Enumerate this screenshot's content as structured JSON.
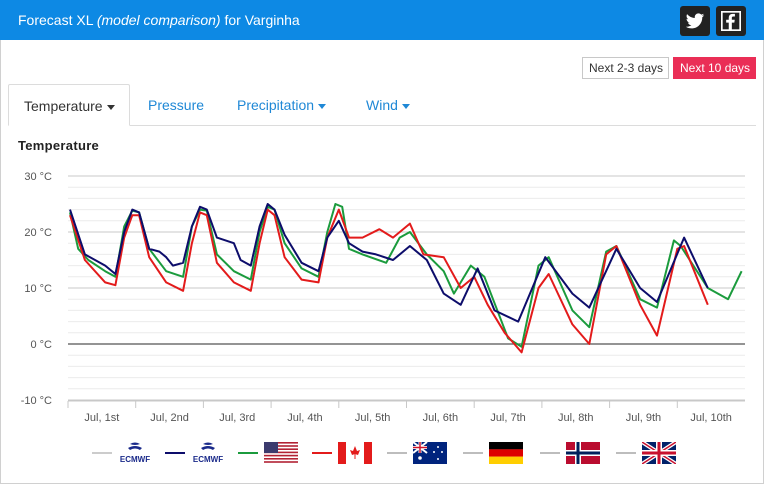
{
  "header": {
    "title_prefix": "Forecast XL",
    "title_em": "(model comparison)",
    "title_suffix": "for Varginha",
    "icons": [
      "twitter-icon",
      "facebook-icon"
    ]
  },
  "range_buttons": {
    "short": "Next 2-3 days",
    "long": "Next 10 days",
    "active": "long"
  },
  "tabs": [
    {
      "label": "Temperature",
      "dropdown": true,
      "active": true
    },
    {
      "label": "Pressure",
      "dropdown": false,
      "active": false
    },
    {
      "label": "Precipitation",
      "dropdown": true,
      "active": false
    },
    {
      "label": "Wind",
      "dropdown": true,
      "active": false
    }
  ],
  "chart_title": "Temperature",
  "colors": {
    "ecmwf_gray": "#cccccc",
    "ecmwf_navy": "#0d0d6b",
    "usa": "#1b9b3d",
    "canada": "#e31b1b",
    "australia": "#bdbdbd",
    "germany": "#bdbdbd",
    "norway": "#bdbdbd",
    "uk": "#bdbdbd"
  },
  "legend": [
    {
      "icon": "ecmwf-logo-icon",
      "text": "ECMWF",
      "color": "#cccccc"
    },
    {
      "icon": "ecmwf-logo-icon",
      "text": "ECMWF",
      "color": "#0d0d6b"
    },
    {
      "icon": "usa-flag-icon",
      "text": "",
      "color": "#1b9b3d"
    },
    {
      "icon": "canada-flag-icon",
      "text": "",
      "color": "#e31b1b"
    },
    {
      "icon": "australia-flag-icon",
      "text": "",
      "color": "#bdbdbd"
    },
    {
      "icon": "germany-flag-icon",
      "text": "",
      "color": "#bdbdbd"
    },
    {
      "icon": "norway-flag-icon",
      "text": "",
      "color": "#bdbdbd"
    },
    {
      "icon": "uk-flag-icon",
      "text": "",
      "color": "#bdbdbd"
    }
  ],
  "chart_data": {
    "type": "line",
    "title": "Temperature",
    "y_unit": "°C",
    "ylim": [
      -10,
      30
    ],
    "xlim": [
      0.5,
      10.5
    ],
    "y_ticks": [
      {
        "v": 30,
        "label": "30 °C"
      },
      {
        "v": 20,
        "label": "20 °C"
      },
      {
        "v": 10,
        "label": "10 °C"
      },
      {
        "v": 0,
        "label": "0 °C"
      },
      {
        "v": -10,
        "label": "-10 °C"
      }
    ],
    "x_ticks": [
      {
        "v": 1,
        "label": "Jul, 1st"
      },
      {
        "v": 2,
        "label": "Jul, 2nd"
      },
      {
        "v": 3,
        "label": "Jul, 3rd"
      },
      {
        "v": 4,
        "label": "Jul, 4th"
      },
      {
        "v": 5,
        "label": "Jul, 5th"
      },
      {
        "v": 6,
        "label": "Jul, 6th"
      },
      {
        "v": 7,
        "label": "Jul, 7th"
      },
      {
        "v": 8,
        "label": "Jul, 8th"
      },
      {
        "v": 9,
        "label": "Jul, 9th"
      },
      {
        "v": 10,
        "label": "Jul, 10th"
      }
    ],
    "grid": true,
    "series": [
      {
        "color": "#1b9b3d",
        "points": [
          [
            0.53,
            23.5
          ],
          [
            0.65,
            17
          ],
          [
            0.8,
            15
          ],
          [
            1.05,
            13
          ],
          [
            1.2,
            12
          ],
          [
            1.33,
            21
          ],
          [
            1.45,
            23.8
          ],
          [
            1.55,
            23.5
          ],
          [
            1.7,
            17
          ],
          [
            1.95,
            13
          ],
          [
            2.2,
            12
          ],
          [
            2.33,
            21
          ],
          [
            2.45,
            24
          ],
          [
            2.55,
            23.8
          ],
          [
            2.7,
            16
          ],
          [
            2.95,
            13
          ],
          [
            3.2,
            11.5
          ],
          [
            3.33,
            20
          ],
          [
            3.45,
            24.5
          ],
          [
            3.55,
            24
          ],
          [
            3.7,
            18
          ],
          [
            3.95,
            13.5
          ],
          [
            4.2,
            12
          ],
          [
            4.33,
            20
          ],
          [
            4.45,
            25
          ],
          [
            4.55,
            24.5
          ],
          [
            4.65,
            17
          ],
          [
            4.85,
            16
          ],
          [
            5.2,
            14.5
          ],
          [
            5.4,
            19
          ],
          [
            5.55,
            20
          ],
          [
            5.8,
            16
          ],
          [
            6.05,
            13
          ],
          [
            6.2,
            9
          ],
          [
            6.45,
            14
          ],
          [
            6.65,
            12
          ],
          [
            7.0,
            1
          ],
          [
            7.2,
            -0.5
          ],
          [
            7.45,
            14
          ],
          [
            7.6,
            15.5
          ],
          [
            7.95,
            6
          ],
          [
            8.2,
            3
          ],
          [
            8.45,
            16.5
          ],
          [
            8.6,
            17.5
          ],
          [
            8.95,
            8
          ],
          [
            9.2,
            6.5
          ],
          [
            9.45,
            18.5
          ],
          [
            9.55,
            17.5
          ],
          [
            9.95,
            10
          ],
          [
            10.25,
            8
          ],
          [
            10.45,
            13
          ]
        ]
      },
      {
        "color": "#e31b1b",
        "points": [
          [
            0.53,
            23
          ],
          [
            0.75,
            15
          ],
          [
            1.05,
            11
          ],
          [
            1.2,
            10.5
          ],
          [
            1.33,
            19
          ],
          [
            1.45,
            23
          ],
          [
            1.55,
            23
          ],
          [
            1.7,
            15.5
          ],
          [
            1.95,
            11
          ],
          [
            2.2,
            9.5
          ],
          [
            2.33,
            18
          ],
          [
            2.45,
            23.5
          ],
          [
            2.55,
            23
          ],
          [
            2.7,
            14.5
          ],
          [
            2.95,
            11
          ],
          [
            3.2,
            9.5
          ],
          [
            3.33,
            18
          ],
          [
            3.45,
            24
          ],
          [
            3.55,
            23
          ],
          [
            3.7,
            15.5
          ],
          [
            3.95,
            11.5
          ],
          [
            4.2,
            11
          ],
          [
            4.33,
            19
          ],
          [
            4.5,
            24
          ],
          [
            4.65,
            19
          ],
          [
            4.85,
            19
          ],
          [
            5.1,
            20.5
          ],
          [
            5.3,
            19
          ],
          [
            5.55,
            21.5
          ],
          [
            5.75,
            16
          ],
          [
            6.05,
            15.5
          ],
          [
            6.3,
            10
          ],
          [
            6.5,
            12
          ],
          [
            6.7,
            7
          ],
          [
            6.95,
            2
          ],
          [
            7.2,
            -1.5
          ],
          [
            7.45,
            10
          ],
          [
            7.6,
            12.5
          ],
          [
            7.95,
            3.5
          ],
          [
            8.2,
            0
          ],
          [
            8.45,
            16
          ],
          [
            8.6,
            17.5
          ],
          [
            8.95,
            7
          ],
          [
            9.2,
            1.5
          ],
          [
            9.5,
            17
          ],
          [
            9.6,
            17.5
          ],
          [
            9.95,
            7
          ]
        ]
      },
      {
        "color": "#0d0d6b",
        "points": [
          [
            0.53,
            24
          ],
          [
            0.75,
            16
          ],
          [
            1.05,
            14
          ],
          [
            1.2,
            12.5
          ],
          [
            1.33,
            20
          ],
          [
            1.45,
            24
          ],
          [
            1.55,
            23.5
          ],
          [
            1.7,
            17
          ],
          [
            1.85,
            16.5
          ],
          [
            1.95,
            15.5
          ],
          [
            2.05,
            14
          ],
          [
            2.2,
            14.5
          ],
          [
            2.33,
            21
          ],
          [
            2.45,
            24.5
          ],
          [
            2.55,
            24
          ],
          [
            2.7,
            19
          ],
          [
            2.95,
            18
          ],
          [
            3.05,
            15
          ],
          [
            3.2,
            14
          ],
          [
            3.33,
            21
          ],
          [
            3.45,
            25
          ],
          [
            3.55,
            24
          ],
          [
            3.7,
            19.5
          ],
          [
            3.95,
            14.5
          ],
          [
            4.2,
            13
          ],
          [
            4.33,
            19
          ],
          [
            4.5,
            22
          ],
          [
            4.65,
            18
          ],
          [
            4.85,
            16.5
          ],
          [
            5.05,
            16
          ],
          [
            5.3,
            15
          ],
          [
            5.55,
            17.5
          ],
          [
            5.8,
            15
          ],
          [
            6.05,
            9
          ],
          [
            6.3,
            7
          ],
          [
            6.55,
            13.5
          ],
          [
            6.8,
            6
          ],
          [
            7.15,
            4
          ],
          [
            7.55,
            15.5
          ],
          [
            7.95,
            9
          ],
          [
            8.2,
            6.5
          ],
          [
            8.6,
            17
          ],
          [
            8.95,
            10
          ],
          [
            9.2,
            7.5
          ],
          [
            9.6,
            19
          ],
          [
            9.95,
            10
          ]
        ]
      }
    ]
  }
}
